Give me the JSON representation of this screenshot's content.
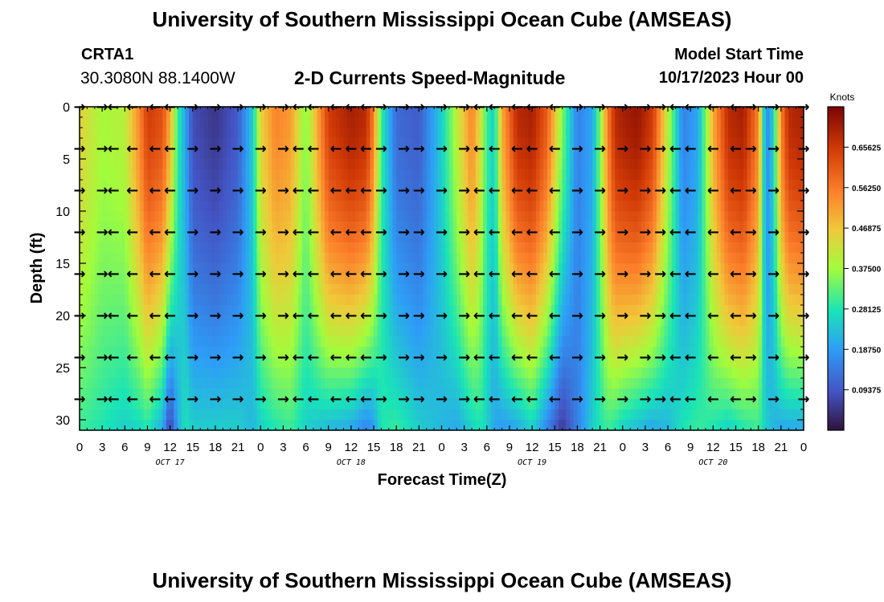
{
  "header": {
    "title": "University of Southern Mississippi Ocean Cube (AMSEAS)",
    "station": "CRTA1",
    "coordinates": "30.3080N  88.1400W",
    "plot_title": "2-D Currents Speed-Magnitude",
    "model_start_label": "Model Start Time",
    "model_start_value": "10/17/2023 Hour 00"
  },
  "footer": {
    "title": "University of Southern Mississippi Ocean Cube (AMSEAS)"
  },
  "chart_data": {
    "type": "heatmap",
    "title": "2-D Currents Speed-Magnitude",
    "xlabel": "Forecast Time(Z)",
    "ylabel": "Depth (ft)",
    "x_ticks": [
      "0",
      "3",
      "6",
      "9",
      "12",
      "15",
      "18",
      "21",
      "0",
      "3",
      "6",
      "9",
      "12",
      "15",
      "18",
      "21",
      "0",
      "3",
      "6",
      "9",
      "12",
      "15",
      "18",
      "21",
      "0",
      "3",
      "6",
      "9",
      "12",
      "15",
      "18",
      "21",
      "0"
    ],
    "date_labels": [
      {
        "label": "OCT 17",
        "hour": 12
      },
      {
        "label": "OCT 18",
        "hour": 36
      },
      {
        "label": "OCT 19",
        "hour": 60
      },
      {
        "label": "OCT 20",
        "hour": 84
      }
    ],
    "x_range_hours": [
      0,
      96
    ],
    "y_ticks": [
      0,
      5,
      10,
      15,
      20,
      25,
      30
    ],
    "y_range_ft": [
      0,
      31
    ],
    "colorbar": {
      "unit": "Knots",
      "range": [
        0,
        0.75
      ],
      "ticks": [
        "0.65625",
        "0.56250",
        "0.46875",
        "0.37500",
        "0.28125",
        "0.18750",
        "0.09375"
      ],
      "tick_values": [
        0.65625,
        0.5625,
        0.46875,
        0.375,
        0.28125,
        0.1875,
        0.09375
      ]
    },
    "speed_profile_hours": [
      0,
      3,
      6,
      8,
      9,
      11,
      12,
      13,
      14,
      15,
      18,
      21,
      23,
      24,
      26,
      28,
      30,
      33,
      36,
      38,
      39,
      40,
      42,
      45,
      48,
      50,
      52,
      53,
      54,
      55,
      56,
      58,
      60,
      62,
      64,
      66,
      68,
      69,
      70,
      71,
      72,
      74,
      76,
      78,
      80,
      82,
      84,
      86,
      88,
      90,
      91,
      92,
      93,
      94,
      96
    ],
    "speed_surface_knots": [
      0.45,
      0.38,
      0.4,
      0.55,
      0.65,
      0.62,
      0.5,
      0.3,
      0.2,
      0.08,
      0.05,
      0.1,
      0.25,
      0.45,
      0.55,
      0.52,
      0.35,
      0.65,
      0.7,
      0.68,
      0.55,
      0.3,
      0.12,
      0.1,
      0.25,
      0.4,
      0.55,
      0.45,
      0.3,
      0.25,
      0.5,
      0.68,
      0.7,
      0.6,
      0.35,
      0.15,
      0.2,
      0.35,
      0.55,
      0.68,
      0.7,
      0.72,
      0.65,
      0.4,
      0.15,
      0.2,
      0.5,
      0.68,
      0.7,
      0.55,
      0.15,
      0.25,
      0.55,
      0.68,
      0.7
    ],
    "speed_bottom_knots": [
      0.3,
      0.28,
      0.25,
      0.26,
      0.28,
      0.2,
      0.05,
      0.2,
      0.28,
      0.25,
      0.25,
      0.25,
      0.22,
      0.25,
      0.28,
      0.3,
      0.25,
      0.22,
      0.2,
      0.15,
      0.18,
      0.28,
      0.3,
      0.25,
      0.22,
      0.2,
      0.25,
      0.28,
      0.25,
      0.2,
      0.18,
      0.2,
      0.25,
      0.15,
      0.05,
      0.15,
      0.25,
      0.28,
      0.3,
      0.28,
      0.25,
      0.22,
      0.2,
      0.22,
      0.28,
      0.3,
      0.28,
      0.25,
      0.28,
      0.3,
      0.25,
      0.22,
      0.2,
      0.2,
      0.2
    ],
    "arrow_depths_ft": [
      0,
      4,
      8,
      12,
      16,
      20,
      24,
      28
    ],
    "arrow_hours": [
      0,
      3,
      4.5,
      7,
      10,
      12,
      15,
      18,
      21,
      24,
      27,
      29,
      31,
      34,
      36,
      38,
      40,
      43,
      45,
      48,
      51,
      53,
      55,
      58,
      60,
      63,
      66,
      69,
      72,
      75,
      77,
      79,
      81,
      84,
      87,
      89,
      92,
      96
    ],
    "arrow_directions": [
      "→",
      "→",
      "←",
      "←",
      "←",
      "←",
      "→",
      "→",
      "→",
      "→",
      "→",
      "←",
      "←",
      "←",
      "←",
      "←",
      "→",
      "→",
      "→",
      "→",
      "→",
      "←",
      "←",
      "←",
      "←",
      "←",
      "→",
      "→",
      "→",
      "→",
      "→",
      "←",
      "←",
      "←",
      "←",
      "→",
      "→",
      "→"
    ]
  }
}
